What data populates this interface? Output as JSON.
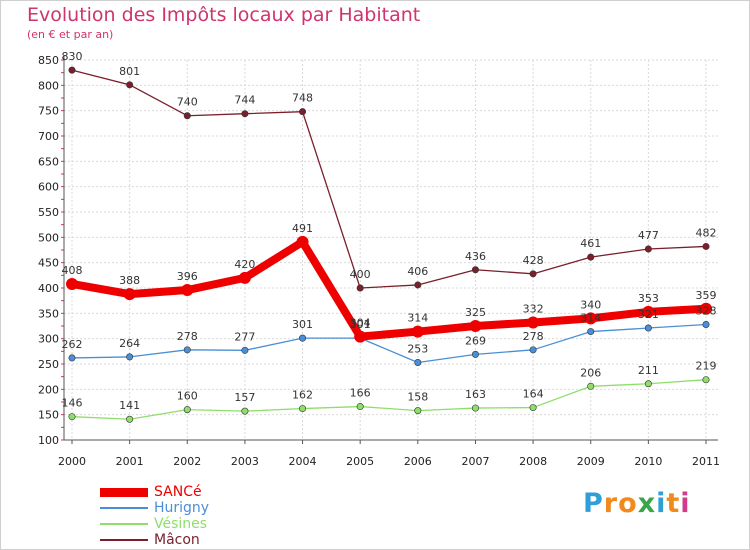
{
  "title": "Evolution des Impôts locaux par Habitant",
  "subtitle": "(en € et par an)",
  "logo": {
    "letters": [
      "P",
      "r",
      "o",
      "x",
      "i",
      "t",
      "i"
    ],
    "colors": [
      "#2f9fd8",
      "#f08a1c",
      "#f08a1c",
      "#3aa64a",
      "#2f9fd8",
      "#f08a1c",
      "#d43b8c"
    ]
  },
  "chart_data": {
    "type": "line",
    "title": "Evolution des Impôts locaux par Habitant",
    "subtitle": "(en € et par an)",
    "xlabel": "",
    "ylabel": "",
    "categories": [
      "2000",
      "2001",
      "2002",
      "2003",
      "2004",
      "2005",
      "2006",
      "2007",
      "2008",
      "2009",
      "2010",
      "2011"
    ],
    "ylim": [
      100,
      850
    ],
    "yticks": [
      100,
      150,
      200,
      250,
      300,
      350,
      400,
      450,
      500,
      550,
      600,
      650,
      700,
      750,
      800,
      850
    ],
    "grid": true,
    "legend_position": "bottom-left",
    "series": [
      {
        "name": "SANCé",
        "color": "#ee0000",
        "values": [
          408,
          388,
          396,
          420,
          491,
          304,
          314,
          325,
          332,
          340,
          353,
          359
        ]
      },
      {
        "name": "Hurigny",
        "color": "#4a8fd6",
        "values": [
          262,
          264,
          278,
          277,
          301,
          301,
          253,
          269,
          278,
          314,
          321,
          328
        ]
      },
      {
        "name": "Vésines",
        "color": "#8fde6a",
        "values": [
          146,
          141,
          160,
          157,
          162,
          166,
          158,
          163,
          164,
          206,
          211,
          219
        ]
      },
      {
        "name": "Mâcon",
        "color": "#7a1f2b",
        "values": [
          830,
          801,
          740,
          744,
          748,
          400,
          406,
          436,
          428,
          461,
          477,
          482
        ]
      }
    ]
  }
}
